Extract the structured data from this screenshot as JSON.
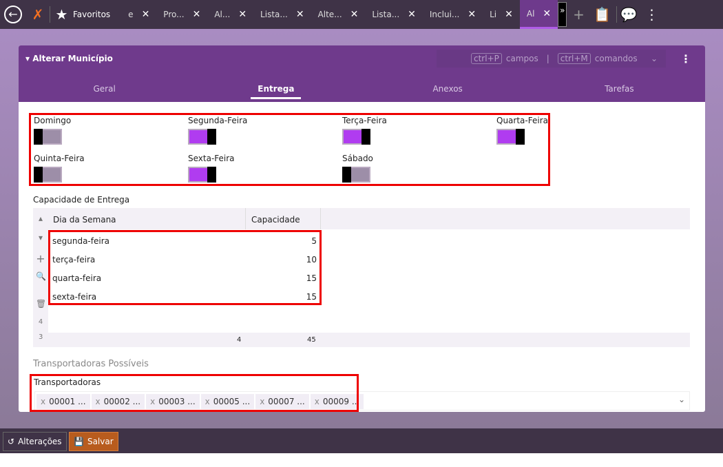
{
  "topbar": {
    "favorites": "Favoritos",
    "tabs": [
      "e",
      "Pro...",
      "Al...",
      "Lista...",
      "Alte...",
      "Lista...",
      "Inclui...",
      "Li",
      "Al"
    ],
    "active_tab": 8,
    "more": "»"
  },
  "form": {
    "title": "Alterar Município",
    "shortcut1": "ctrl+P",
    "shortcut1_label": "campos",
    "separator": "|",
    "shortcut2": "ctrl+M",
    "shortcut2_label": "comandos",
    "tabs": [
      "Geral",
      "Entrega",
      "Anexos",
      "Tarefas"
    ],
    "active_tab": "Entrega"
  },
  "days": [
    {
      "label": "Domingo",
      "on": false
    },
    {
      "label": "Segunda-Feira",
      "on": true
    },
    {
      "label": "Terça-Feira",
      "on": true
    },
    {
      "label": "Quarta-Feira",
      "on": true
    },
    {
      "label": "Quinta-Feira",
      "on": false
    },
    {
      "label": "Sexta-Feira",
      "on": true
    },
    {
      "label": "Sábado",
      "on": false
    }
  ],
  "capacity": {
    "title": "Capacidade de Entrega",
    "columns": [
      "Dia da Semana",
      "Capacidade"
    ],
    "rows": [
      {
        "day": "segunda-feira",
        "cap": "5"
      },
      {
        "day": "terça-feira",
        "cap": "10"
      },
      {
        "day": "quarta-feira",
        "cap": "15"
      },
      {
        "day": "sexta-feira",
        "cap": "15"
      }
    ],
    "row_count": "4",
    "footer_left": "3",
    "footer_count": "4",
    "footer_total": "45"
  },
  "carriers": {
    "section": "Transportadoras Possíveis",
    "label": "Transportadoras",
    "chips": [
      "00001 ...",
      "00002 ...",
      "00003 ...",
      "00005 ...",
      "00007 ...",
      "00009 ..."
    ]
  },
  "footer": {
    "changes": "Alterações",
    "save": "Salvar"
  },
  "colors": {
    "accent": "#6f3a8c",
    "toggle_on": "#b03cf0",
    "save": "#b85c1e"
  }
}
